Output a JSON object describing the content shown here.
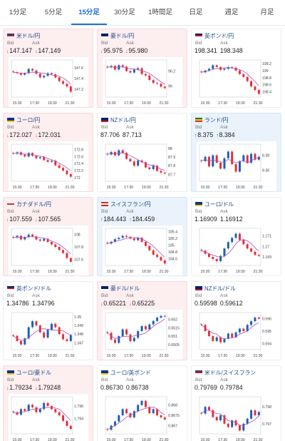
{
  "tabs": [
    "1分足",
    "5分足",
    "15分足",
    "30分足",
    "1時間足",
    "日足",
    "週足",
    "月足"
  ],
  "active_tab": 2,
  "labels": {
    "bid": "Bid",
    "ask": "Ask"
  },
  "colors": {
    "up_candle": "#1a5fb4",
    "down_candle": "#e0303a",
    "ma_line": "#b04bb8",
    "card_down": "#fdeef0",
    "card_up": "#eaf3fb",
    "active_tab": "#1f6fd6"
  },
  "cards": [
    {
      "name": "米ドル/円",
      "flag": [
        "#3c3b6e",
        "#b22234",
        "#ffffff"
      ],
      "state": "down",
      "dir": "down",
      "bid": "147.147",
      "ask": "147.149",
      "chart_data": {
        "type": "line",
        "x_ticks": [
          "15:30",
          "17:30",
          "19:30",
          "21:30"
        ],
        "y_ticks": [
          "147.6",
          "147.4",
          "147.2"
        ],
        "ylim": [
          147.05,
          147.75
        ],
        "trend": "down",
        "series": [
          {
            "values": [
              147.52,
              147.5,
              147.47,
              147.5,
              147.58,
              147.55,
              147.49,
              147.42,
              147.45,
              147.5,
              147.48,
              147.42,
              147.35,
              147.3,
              147.25,
              147.15
            ]
          }
        ]
      }
    },
    {
      "name": "豪ドル/円",
      "flag": [
        "#012169",
        "#012169",
        "#ffffff"
      ],
      "state": "down",
      "dir": "down",
      "bid": "95.975",
      "ask": "95.980",
      "chart_data": {
        "type": "line",
        "x_ticks": [
          "15:30",
          "17:30",
          "19:30",
          "21:30"
        ],
        "y_ticks": [
          "96.2",
          "96"
        ],
        "ylim": [
          95.85,
          96.35
        ],
        "trend": "down",
        "series": [
          {
            "values": [
              96.25,
              96.27,
              96.22,
              96.28,
              96.26,
              96.2,
              96.18,
              96.22,
              96.24,
              96.16,
              96.14,
              96.08,
              96.04,
              96.03,
              95.99,
              95.97
            ]
          }
        ]
      }
    },
    {
      "name": "英ポンド/円",
      "flag": [
        "#012169",
        "#c8102e",
        "#ffffff"
      ],
      "state": "neutral",
      "dir": "none",
      "bid": "198.341",
      "ask": "198.348",
      "chart_data": {
        "type": "line",
        "x_ticks": [
          "15:30",
          "17:30",
          "19:30",
          "21:30"
        ],
        "y_ticks": [
          "199.2",
          "199",
          "198.8",
          "198.6",
          "198.4"
        ],
        "ylim": [
          198.25,
          199.3
        ],
        "trend": "down",
        "series": [
          {
            "values": [
              198.95,
              199.0,
              199.05,
              199.15,
              199.1,
              199.02,
              199.05,
              199.1,
              199.08,
              199.0,
              198.9,
              198.82,
              198.7,
              198.55,
              198.45,
              198.34
            ]
          }
        ]
      }
    },
    {
      "name": "ユーロ/円",
      "flag": [
        "#003399",
        "#003399",
        "#ffcc00"
      ],
      "state": "down",
      "dir": "down",
      "bid": "172.027",
      "ask": "172.031",
      "chart_data": {
        "type": "line",
        "x_ticks": [
          "15:30",
          "17:30",
          "19:30",
          "21:30"
        ],
        "y_ticks": [
          "172.8",
          "172.6",
          "172.4",
          "172.2",
          "172"
        ],
        "ylim": [
          171.9,
          172.95
        ],
        "trend": "down",
        "series": [
          {
            "values": [
              172.68,
              172.72,
              172.65,
              172.6,
              172.7,
              172.62,
              172.55,
              172.58,
              172.5,
              172.45,
              172.48,
              172.35,
              172.28,
              172.2,
              172.1,
              172.03
            ]
          }
        ]
      }
    },
    {
      "name": "NZドル/円",
      "flag": [
        "#012169",
        "#012169",
        "#cc142b"
      ],
      "state": "neutral",
      "dir": "none",
      "bid": "87.706",
      "ask": "87.713",
      "chart_data": {
        "type": "line",
        "x_ticks": [
          "15:30",
          "17:30",
          "19:30",
          "21:30"
        ],
        "y_ticks": [
          "88",
          "87.9",
          "87.8",
          "87.7"
        ],
        "ylim": [
          87.62,
          88.05
        ],
        "trend": "down",
        "series": [
          {
            "values": [
              87.93,
              87.96,
              87.92,
              87.98,
              87.95,
              87.88,
              87.85,
              87.8,
              87.86,
              87.84,
              87.78,
              87.76,
              87.8,
              87.74,
              87.72,
              87.71
            ]
          }
        ]
      }
    },
    {
      "name": "ランド/円",
      "flag": [
        "#007a4d",
        "#ffb612",
        "#de3831"
      ],
      "state": "up",
      "dir": "up",
      "bid": "8.375",
      "ask": "8.384",
      "chart_data": {
        "type": "line",
        "x_ticks": [
          "15:30",
          "17:30",
          "19:30",
          "21:30"
        ],
        "y_ticks": [
          "8.38",
          "8.36"
        ],
        "ylim": [
          8.345,
          8.395
        ],
        "trend": "flat",
        "series": [
          {
            "values": [
              8.372,
              8.378,
              8.365,
              8.38,
              8.37,
              8.362,
              8.376,
              8.385,
              8.368,
              8.358,
              8.372,
              8.38,
              8.37,
              8.382,
              8.374,
              8.378
            ]
          }
        ]
      }
    },
    {
      "name": "カナダドル/円",
      "flag": [
        "#ffffff",
        "#d52b1e",
        "#ffffff"
      ],
      "state": "down",
      "dir": "down",
      "bid": "107.559",
      "ask": "107.565",
      "chart_data": {
        "type": "line",
        "x_ticks": [
          "15:30",
          "17:30",
          "19:30",
          "21:30"
        ],
        "y_ticks": [
          "108",
          "107.8",
          "107.6"
        ],
        "ylim": [
          107.5,
          108.1
        ],
        "trend": "down",
        "series": [
          {
            "values": [
              107.95,
              107.98,
              107.92,
              107.96,
              108.0,
              107.97,
              107.92,
              107.9,
              107.93,
              107.88,
              107.84,
              107.8,
              107.75,
              107.7,
              107.62,
              107.56
            ]
          }
        ]
      }
    },
    {
      "name": "スイスフラン/円",
      "flag": [
        "#d52b1e",
        "#ffffff",
        "#d52b1e"
      ],
      "state": "up",
      "dir": "up",
      "bid": "184.443",
      "ask": "184.459",
      "chart_data": {
        "type": "line",
        "x_ticks": [
          "15:30",
          "17:30",
          "19:30",
          "21:30"
        ],
        "y_ticks": [
          "185.4",
          "185.2",
          "185",
          "184.8",
          "184.6"
        ],
        "ylim": [
          184.4,
          185.5
        ],
        "trend": "down",
        "series": [
          {
            "values": [
              185.05,
              185.1,
              185.18,
              185.22,
              185.28,
              185.25,
              185.2,
              185.15,
              185.22,
              185.1,
              184.98,
              184.85,
              184.72,
              184.65,
              184.55,
              184.46
            ]
          }
        ]
      }
    },
    {
      "name": "ユーロ/ドル",
      "flag": [
        "#003399",
        "#003399",
        "#ffcc00"
      ],
      "state": "neutral",
      "dir": "none",
      "bid": "1.16909",
      "ask": "1.16912",
      "chart_data": {
        "type": "line",
        "x_ticks": [
          "15:30",
          "17:30",
          "19:30",
          "21:30"
        ],
        "y_ticks": [
          "1.171",
          "1.17",
          "1.169"
        ],
        "ylim": [
          1.1682,
          1.1717
        ],
        "trend": "up",
        "series": [
          {
            "values": [
              1.1696,
              1.1693,
              1.169,
              1.1688,
              1.1686,
              1.1691,
              1.1698,
              1.1704,
              1.1708,
              1.1712,
              1.1706,
              1.1702,
              1.1698,
              1.1695,
              1.1692,
              1.1691
            ]
          }
        ]
      }
    },
    {
      "name": "英ポンド/ドル",
      "flag": [
        "#012169",
        "#c8102e",
        "#ffffff"
      ],
      "state": "neutral",
      "dir": "none",
      "bid": "1.34786",
      "ask": "1.34796",
      "chart_data": {
        "type": "line",
        "x_ticks": [
          "15:30",
          "17:30",
          "19:30",
          "21:30"
        ],
        "y_ticks": [
          "1.35",
          "1.349",
          "1.348",
          "1.347"
        ],
        "ylim": [
          1.3462,
          1.3505
        ],
        "trend": "flat",
        "series": [
          {
            "values": [
              1.3478,
              1.3472,
              1.3468,
              1.3475,
              1.3488,
              1.3495,
              1.349,
              1.3482,
              1.3476,
              1.3485,
              1.3492,
              1.3488,
              1.348,
              1.3474,
              1.3472,
              1.3479
            ]
          }
        ]
      }
    },
    {
      "name": "豪ドル/ドル",
      "flag": [
        "#012169",
        "#012169",
        "#ffffff"
      ],
      "state": "down",
      "dir": "down",
      "bid": "0.65221",
      "ask": "0.65225",
      "chart_data": {
        "type": "line",
        "x_ticks": [
          "15:30",
          "17:30",
          "19:30",
          "21:30"
        ],
        "y_ticks": [
          "0.652",
          "0.6515",
          "0.651",
          "0.6505"
        ],
        "ylim": [
          0.6502,
          0.6524
        ],
        "trend": "up",
        "series": [
          {
            "values": [
              0.6512,
              0.6508,
              0.6506,
              0.651,
              0.6514,
              0.6511,
              0.6507,
              0.6509,
              0.6513,
              0.6516,
              0.6514,
              0.6517,
              0.6519,
              0.6521,
              0.6522,
              0.6522
            ]
          }
        ]
      }
    },
    {
      "name": "NZドル/ドル",
      "flag": [
        "#012169",
        "#012169",
        "#cc142b"
      ],
      "state": "neutral",
      "dir": "none",
      "bid": "0.59598",
      "ask": "0.59612",
      "chart_data": {
        "type": "line",
        "x_ticks": [
          "15:30",
          "17:30",
          "19:30",
          "21:30"
        ],
        "y_ticks": [
          "0.596",
          "0.595",
          "0.594"
        ],
        "ylim": [
          0.5935,
          0.5965
        ],
        "trend": "up",
        "series": [
          {
            "values": [
              0.5955,
              0.595,
              0.5946,
              0.5942,
              0.5945,
              0.5941,
              0.5944,
              0.5948,
              0.5945,
              0.5949,
              0.5952,
              0.595,
              0.5955,
              0.5958,
              0.5961,
              0.596
            ]
          }
        ]
      }
    },
    {
      "name": "ユーロ/豪ドル",
      "flag": [
        "#003399",
        "#003399",
        "#ffcc00"
      ],
      "state": "down",
      "dir": "down",
      "bid": "1.79234",
      "ask": "1.79248",
      "chart_data": {
        "type": "line",
        "x_ticks": [
          "15:30",
          "17:30",
          "19:30",
          "21:30"
        ],
        "y_ticks": [
          "1.796",
          "1.794"
        ],
        "ylim": [
          1.7915,
          1.7975
        ],
        "trend": "down",
        "series": [
          {
            "values": [
              1.795,
              1.7946,
              1.7955,
              1.7952,
              1.7962,
              1.7958,
              1.795,
              1.7955,
              1.7965,
              1.796,
              1.7955,
              1.795,
              1.7945,
              1.7936,
              1.7928,
              1.7923
            ]
          }
        ]
      }
    },
    {
      "name": "ユーロ/英ポンド",
      "flag": [
        "#003399",
        "#003399",
        "#ffcc00"
      ],
      "state": "neutral",
      "dir": "none",
      "bid": "0.86730",
      "ask": "0.86738",
      "chart_data": {
        "type": "line",
        "x_ticks": [
          "15:30",
          "17:30",
          "19:30",
          "21:30"
        ],
        "y_ticks": [
          "0.868",
          "0.8675",
          "0.867"
        ],
        "ylim": [
          0.8666,
          0.8684
        ],
        "trend": "up",
        "series": [
          {
            "values": [
              0.8668,
              0.867,
              0.8672,
              0.8675,
              0.8678,
              0.8676,
              0.8674,
              0.8677,
              0.868,
              0.8682,
              0.8679,
              0.8676,
              0.8678,
              0.8675,
              0.8674,
              0.8673
            ]
          }
        ]
      }
    },
    {
      "name": "米ドル/スイスフラン",
      "flag": [
        "#3c3b6e",
        "#b22234",
        "#ffffff"
      ],
      "state": "neutral",
      "dir": "none",
      "bid": "0.79769",
      "ask": "0.79784",
      "chart_data": {
        "type": "line",
        "x_ticks": [
          "15:30",
          "17:30",
          "19:30",
          "21:30"
        ],
        "y_ticks": [
          "0.798",
          "0.797"
        ],
        "ylim": [
          0.7964,
          0.7986
        ],
        "trend": "flat",
        "series": [
          {
            "values": [
              0.7976,
              0.798,
              0.7978,
              0.7974,
              0.7972,
              0.7975,
              0.797,
              0.7968,
              0.7972,
              0.7969,
              0.7966,
              0.797,
              0.7973,
              0.7978,
              0.7975,
              0.7977
            ]
          }
        ]
      }
    }
  ]
}
